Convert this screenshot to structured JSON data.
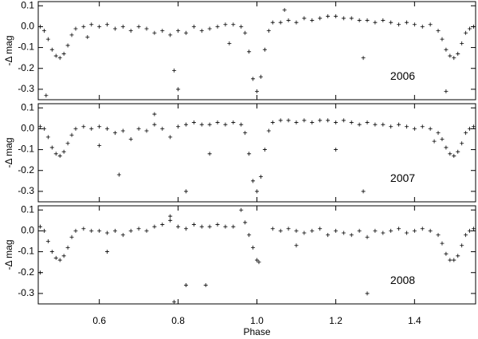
{
  "chart_data": [
    {
      "type": "scatter",
      "annotation": "2006",
      "ylabel": "-Δ mag",
      "color": "#000000",
      "xlim": [
        0.445,
        1.555
      ],
      "xticks": [
        0.6,
        0.8,
        {
          "value": 1,
          "label": "1.0"
        },
        1.2,
        1.4
      ],
      "ylim": [
        -0.35,
        0.12
      ],
      "yticks": [
        0.1,
        {
          "value": 0,
          "label": "0.0"
        },
        -0.1,
        -0.2,
        -0.3
      ],
      "x": [
        0.45,
        0.46,
        0.47,
        0.48,
        0.49,
        0.5,
        0.51,
        0.52,
        0.53,
        0.54,
        0.56,
        0.58,
        0.6,
        0.62,
        0.64,
        0.66,
        0.68,
        0.7,
        0.72,
        0.74,
        0.76,
        0.78,
        0.8,
        0.82,
        0.84,
        0.86,
        0.88,
        0.9,
        0.92,
        0.94,
        0.96,
        0.97,
        0.98,
        0.99,
        1.0,
        1.01,
        1.02,
        1.03,
        1.04,
        1.06,
        1.08,
        1.1,
        1.12,
        1.14,
        1.16,
        1.18,
        1.2,
        1.22,
        1.24,
        1.26,
        1.28,
        1.3,
        1.32,
        1.34,
        1.36,
        1.38,
        1.4,
        1.42,
        1.44,
        1.46,
        1.47,
        1.48,
        1.49,
        1.5,
        1.51,
        1.52,
        1.53,
        1.54,
        1.55,
        0.465,
        0.79,
        0.8,
        1.27,
        1.48,
        0.57,
        0.93,
        1.07
      ],
      "values": [
        0.0,
        -0.02,
        -0.06,
        -0.11,
        -0.14,
        -0.15,
        -0.13,
        -0.09,
        -0.04,
        -0.01,
        0.0,
        0.01,
        0.0,
        0.01,
        -0.01,
        0.0,
        -0.02,
        0.0,
        -0.01,
        -0.03,
        -0.02,
        -0.04,
        -0.02,
        -0.03,
        0.0,
        -0.02,
        -0.01,
        0.0,
        0.01,
        0.01,
        0.0,
        -0.03,
        -0.12,
        -0.25,
        -0.31,
        -0.24,
        -0.11,
        -0.02,
        0.02,
        0.02,
        0.03,
        0.02,
        0.04,
        0.03,
        0.04,
        0.05,
        0.05,
        0.04,
        0.04,
        0.03,
        0.03,
        0.02,
        0.03,
        0.02,
        0.01,
        0.02,
        0.01,
        0.0,
        0.01,
        -0.02,
        -0.06,
        -0.11,
        -0.14,
        -0.15,
        -0.13,
        -0.08,
        -0.03,
        -0.01,
        0.0,
        -0.33,
        -0.21,
        -0.3,
        -0.15,
        -0.31,
        -0.05,
        -0.08,
        0.08
      ]
    },
    {
      "type": "scatter",
      "annotation": "2007",
      "ylabel": "-Δ mag",
      "color": "#000000",
      "xlim": [
        0.445,
        1.555
      ],
      "xticks": [
        0.6,
        0.8,
        {
          "value": 1,
          "label": "1.0"
        },
        1.2,
        1.4
      ],
      "ylim": [
        -0.35,
        0.12
      ],
      "yticks": [
        0.1,
        {
          "value": 0,
          "label": "0.0"
        },
        -0.1,
        -0.2,
        -0.3
      ],
      "x": [
        0.45,
        0.46,
        0.47,
        0.48,
        0.49,
        0.5,
        0.51,
        0.52,
        0.53,
        0.54,
        0.56,
        0.58,
        0.6,
        0.62,
        0.64,
        0.66,
        0.68,
        0.7,
        0.72,
        0.74,
        0.76,
        0.78,
        0.8,
        0.82,
        0.84,
        0.86,
        0.88,
        0.9,
        0.92,
        0.94,
        0.96,
        0.97,
        0.98,
        0.99,
        1.0,
        1.01,
        1.02,
        1.03,
        1.04,
        1.06,
        1.08,
        1.1,
        1.12,
        1.14,
        1.16,
        1.18,
        1.2,
        1.22,
        1.24,
        1.26,
        1.28,
        1.3,
        1.32,
        1.34,
        1.36,
        1.38,
        1.4,
        1.42,
        1.44,
        1.46,
        1.47,
        1.48,
        1.49,
        1.5,
        1.51,
        1.52,
        1.53,
        1.54,
        1.55,
        0.65,
        0.82,
        1.27,
        0.74,
        0.6,
        0.88,
        1.2,
        1.45
      ],
      "values": [
        0.01,
        0.0,
        -0.04,
        -0.09,
        -0.12,
        -0.13,
        -0.11,
        -0.07,
        -0.03,
        0.0,
        0.01,
        0.0,
        0.01,
        0.0,
        -0.02,
        -0.01,
        -0.05,
        0.0,
        -0.01,
        0.02,
        0.0,
        -0.04,
        0.01,
        0.02,
        0.03,
        0.02,
        0.02,
        0.03,
        0.02,
        0.03,
        0.02,
        -0.02,
        -0.12,
        -0.25,
        -0.3,
        -0.23,
        -0.1,
        -0.01,
        0.03,
        0.04,
        0.04,
        0.03,
        0.04,
        0.03,
        0.04,
        0.04,
        0.03,
        0.04,
        0.03,
        0.02,
        0.03,
        0.02,
        0.02,
        0.01,
        0.02,
        0.01,
        0.0,
        0.01,
        0.0,
        -0.02,
        -0.05,
        -0.09,
        -0.12,
        -0.13,
        -0.11,
        -0.07,
        -0.02,
        0.0,
        0.01,
        -0.22,
        -0.3,
        -0.3,
        0.07,
        -0.08,
        -0.12,
        -0.1,
        -0.06
      ]
    },
    {
      "type": "scatter",
      "annotation": "2008",
      "ylabel": "-Δ mag",
      "xlabel": "Phase",
      "color": "#000000",
      "xlim": [
        0.445,
        1.555
      ],
      "xticks": [
        0.6,
        0.8,
        {
          "value": 1,
          "label": "1.0"
        },
        1.2,
        1.4
      ],
      "ylim": [
        -0.35,
        0.12
      ],
      "yticks": [
        0.1,
        {
          "value": 0,
          "label": "0.0"
        },
        -0.1,
        -0.2,
        -0.3
      ],
      "x": [
        0.45,
        0.46,
        0.47,
        0.48,
        0.49,
        0.5,
        0.51,
        0.52,
        0.53,
        0.54,
        0.56,
        0.58,
        0.6,
        0.62,
        0.64,
        0.66,
        0.68,
        0.7,
        0.72,
        0.74,
        0.76,
        0.78,
        0.8,
        0.82,
        0.84,
        0.86,
        0.88,
        0.9,
        0.92,
        0.94,
        0.96,
        0.97,
        0.98,
        0.99,
        1.0,
        1.005,
        1.04,
        1.06,
        1.08,
        1.1,
        1.12,
        1.14,
        1.16,
        1.18,
        1.2,
        1.22,
        1.24,
        1.26,
        1.28,
        1.3,
        1.32,
        1.34,
        1.36,
        1.38,
        1.4,
        1.42,
        1.44,
        1.46,
        1.47,
        1.48,
        1.49,
        1.5,
        1.51,
        1.52,
        1.53,
        1.54,
        1.55,
        0.82,
        0.87,
        1.28,
        0.45,
        0.79,
        0.62,
        0.78,
        1.1
      ],
      "values": [
        0.02,
        0.0,
        -0.05,
        -0.1,
        -0.13,
        -0.14,
        -0.12,
        -0.08,
        -0.03,
        0.0,
        0.01,
        0.0,
        0.0,
        -0.01,
        0.0,
        -0.02,
        0.0,
        0.01,
        0.0,
        0.02,
        0.03,
        0.05,
        0.02,
        0.01,
        0.03,
        0.02,
        0.02,
        0.03,
        0.02,
        0.02,
        0.1,
        0.04,
        -0.02,
        -0.08,
        -0.14,
        -0.15,
        0.01,
        0.0,
        0.01,
        0.0,
        -0.01,
        0.0,
        0.01,
        -0.02,
        0.0,
        -0.01,
        -0.02,
        0.0,
        -0.03,
        0.0,
        -0.01,
        0.0,
        0.01,
        -0.01,
        0.0,
        0.01,
        0.0,
        -0.02,
        -0.06,
        -0.11,
        -0.14,
        -0.14,
        -0.12,
        -0.07,
        -0.02,
        0.0,
        0.01,
        -0.26,
        -0.26,
        -0.3,
        -0.2,
        -0.34,
        -0.1,
        0.07,
        -0.07
      ]
    }
  ]
}
